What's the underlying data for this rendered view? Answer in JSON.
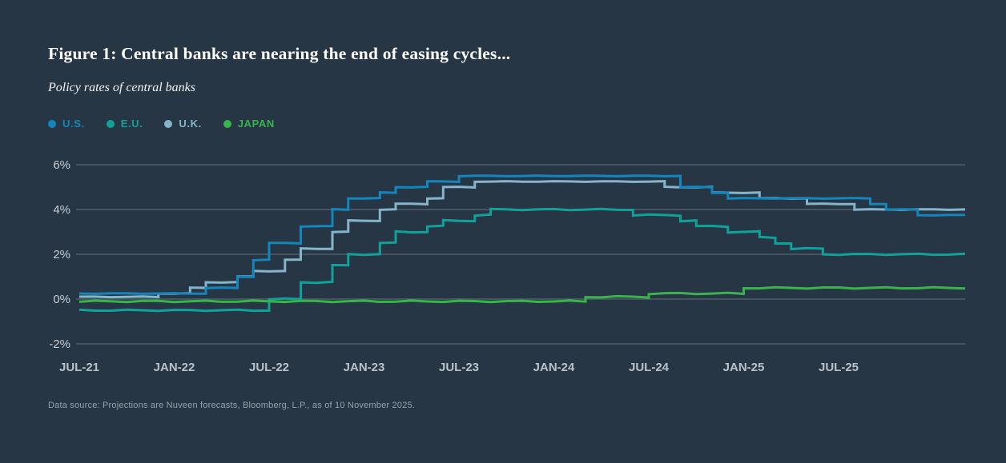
{
  "header": {
    "title": "Figure 1: Central banks are nearing the end of easing cycles...",
    "subtitle": "Policy rates of central banks"
  },
  "legend": {
    "items": [
      {
        "label": "U.S."
      },
      {
        "label": "E.U."
      },
      {
        "label": "U.K."
      },
      {
        "label": "JAPAN"
      }
    ]
  },
  "footer": {
    "source": "Data source: Projections are Nuveen forecasts, Bloomberg, L.P., as of 10 November 2025."
  },
  "colors": {
    "background": "#263645",
    "grid": "#76818b",
    "y_axis_text": "#c7ced5",
    "x_axis_text": "#b9c2ca",
    "source_text": "#97a2ab",
    "us": "#1486bc",
    "eu": "#10a29a",
    "uk": "#85b5cb",
    "japan": "#38b44b"
  },
  "chart_data": {
    "type": "line",
    "title": "Policy rates of central banks",
    "xlabel": "",
    "ylabel": "",
    "x_unit": "months since JUL-21",
    "x_domain": [
      0,
      56
    ],
    "ylim": [
      -2.4,
      6.4
    ],
    "grid": "horizontal",
    "legend_position": "top-left",
    "xticks": {
      "labels": [
        "JUL-21",
        "JAN-22",
        "JUL-22",
        "JAN-23",
        "JUL-23",
        "JAN-24",
        "JUL-24",
        "JAN-25",
        "JUL-25"
      ],
      "t": [
        0,
        6,
        12,
        18,
        24,
        30,
        36,
        42,
        48
      ]
    },
    "yticks": {
      "labels": [
        "6%",
        "4%",
        "2%",
        "0%",
        "-2%"
      ],
      "values": [
        6,
        4,
        2,
        0,
        -2
      ]
    },
    "steps_format": "[month_index_from_JUL-21, policy_rate_percent]; rate holds until next point and to chart end",
    "draw_order": [
      2,
      0,
      1,
      3
    ],
    "series": [
      {
        "name": "U.S.",
        "color": "#1486bc",
        "steps": [
          [
            0,
            0.25
          ],
          [
            8,
            0.5
          ],
          [
            10,
            1.0
          ],
          [
            11,
            1.75
          ],
          [
            12,
            2.5
          ],
          [
            14,
            3.25
          ],
          [
            16,
            4.0
          ],
          [
            17,
            4.5
          ],
          [
            19,
            4.75
          ],
          [
            20,
            5.0
          ],
          [
            22,
            5.25
          ],
          [
            24,
            5.5
          ],
          [
            38,
            5.0
          ],
          [
            40,
            4.75
          ],
          [
            41,
            4.5
          ],
          [
            50,
            4.25
          ],
          [
            51,
            4.0
          ],
          [
            53,
            3.75
          ]
        ]
      },
      {
        "name": "E.U.",
        "color": "#10a29a",
        "steps": [
          [
            0,
            -0.5
          ],
          [
            12,
            0.0
          ],
          [
            14,
            0.75
          ],
          [
            16,
            1.5
          ],
          [
            17,
            2.0
          ],
          [
            19,
            2.5
          ],
          [
            20,
            3.0
          ],
          [
            22,
            3.25
          ],
          [
            23,
            3.5
          ],
          [
            25,
            3.75
          ],
          [
            26,
            4.0
          ],
          [
            35,
            3.75
          ],
          [
            38,
            3.5
          ],
          [
            39,
            3.25
          ],
          [
            41,
            3.0
          ],
          [
            43,
            2.75
          ],
          [
            44,
            2.5
          ],
          [
            45,
            2.25
          ],
          [
            47,
            2.0
          ]
        ]
      },
      {
        "name": "U.K.",
        "color": "#85b5cb",
        "steps": [
          [
            0,
            0.1
          ],
          [
            5,
            0.25
          ],
          [
            7,
            0.5
          ],
          [
            8,
            0.75
          ],
          [
            10,
            1.0
          ],
          [
            11,
            1.25
          ],
          [
            13,
            1.75
          ],
          [
            14,
            2.25
          ],
          [
            16,
            3.0
          ],
          [
            17,
            3.5
          ],
          [
            19,
            4.0
          ],
          [
            20,
            4.25
          ],
          [
            22,
            4.5
          ],
          [
            23,
            5.0
          ],
          [
            25,
            5.25
          ],
          [
            37,
            5.0
          ],
          [
            40,
            4.75
          ],
          [
            43,
            4.5
          ],
          [
            46,
            4.25
          ],
          [
            49,
            4.0
          ]
        ]
      },
      {
        "name": "JAPAN",
        "color": "#38b44b",
        "steps": [
          [
            0,
            -0.1
          ],
          [
            32,
            0.1
          ],
          [
            36,
            0.25
          ],
          [
            42,
            0.5
          ]
        ]
      }
    ]
  }
}
